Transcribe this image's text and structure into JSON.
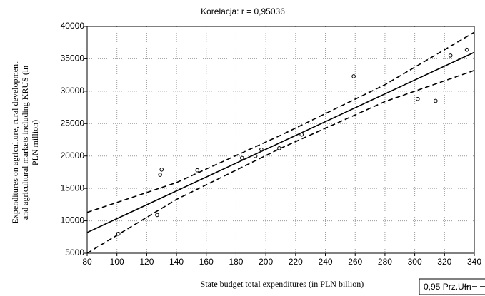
{
  "chart_data": {
    "type": "scatter",
    "title": "Korelacja: r =   0,95036",
    "x_label": "State budget total expenditures (in PLN billion)",
    "y_label": [
      "Expenditures on agriculture, rural development",
      "and agricultural markets including KRUS (in",
      "PLN million)"
    ],
    "legend_label": "0,95 Prz.Ufn",
    "x": [
      101,
      127,
      130,
      129,
      154,
      184,
      193,
      197,
      209,
      224,
      259,
      302,
      314,
      324,
      335
    ],
    "values": [
      8000,
      10900,
      17900,
      17100,
      17800,
      19700,
      20000,
      21000,
      21200,
      23300,
      32300,
      28800,
      28500,
      35500,
      36400
    ],
    "color": "#000000",
    "fit": {
      "x": [
        80,
        340
      ],
      "values": [
        8200,
        36000
      ]
    },
    "confidence_band": {
      "x": [
        80,
        140,
        210,
        280,
        340
      ],
      "upper": [
        11300,
        15900,
        23200,
        31000,
        39100
      ],
      "lower": [
        5000,
        13300,
        21200,
        28400,
        33200
      ]
    },
    "xlim": [
      80,
      340
    ],
    "ylim": [
      5000,
      40000
    ],
    "xticks": [
      80,
      100,
      120,
      140,
      160,
      180,
      200,
      220,
      240,
      260,
      280,
      300,
      320,
      340
    ],
    "yticks": [
      5000,
      10000,
      15000,
      20000,
      25000,
      30000,
      35000,
      40000
    ],
    "grid": true
  }
}
